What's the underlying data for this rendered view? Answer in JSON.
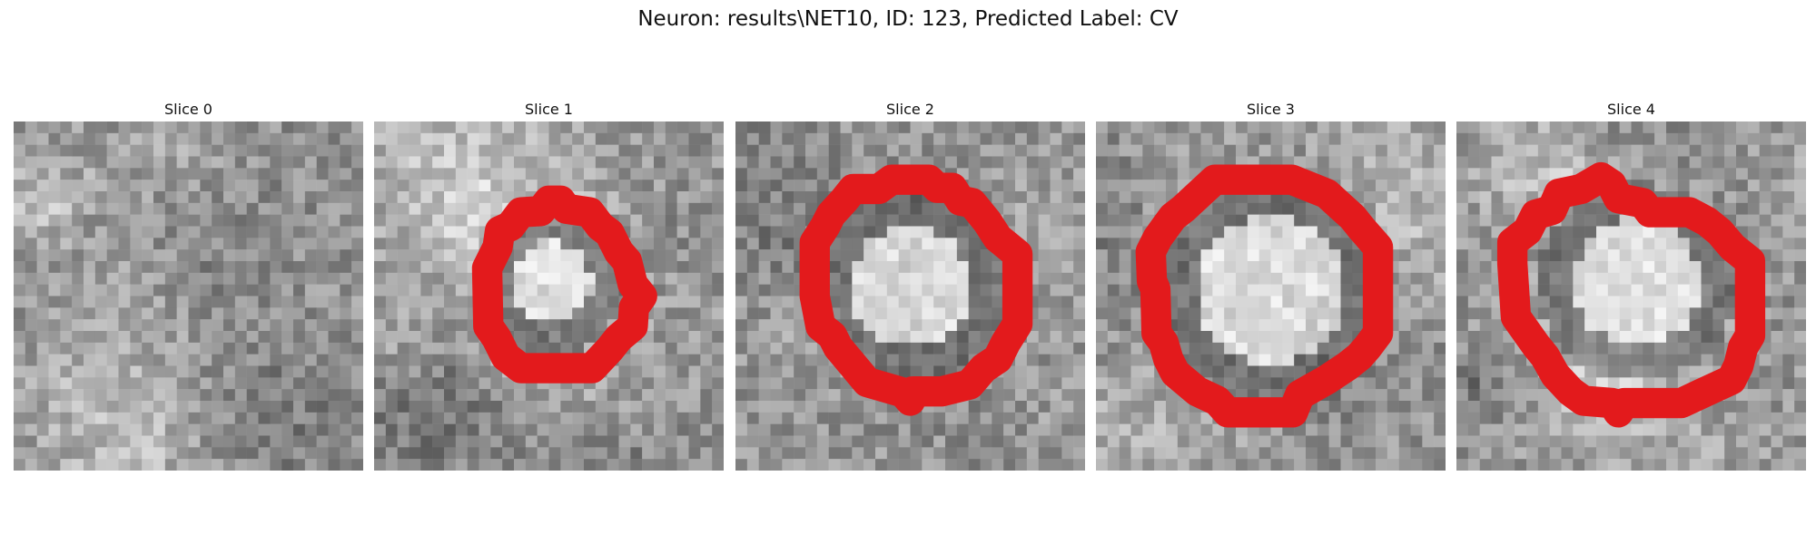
{
  "figure": {
    "title": "Neuron: results\\NET10, ID: 123, Predicted Label: CV"
  },
  "panels": [
    {
      "title": "Slice 0",
      "has_contour": false,
      "pattern": "noise"
    },
    {
      "title": "Slice 1",
      "has_contour": true,
      "pattern": "small-ring"
    },
    {
      "title": "Slice 2",
      "has_contour": true,
      "pattern": "ring"
    },
    {
      "title": "Slice 3",
      "has_contour": true,
      "pattern": "large-ring"
    },
    {
      "title": "Slice 4",
      "has_contour": true,
      "pattern": "ring"
    }
  ],
  "colors": {
    "contour": "#e31a1c",
    "background": "#ffffff"
  }
}
